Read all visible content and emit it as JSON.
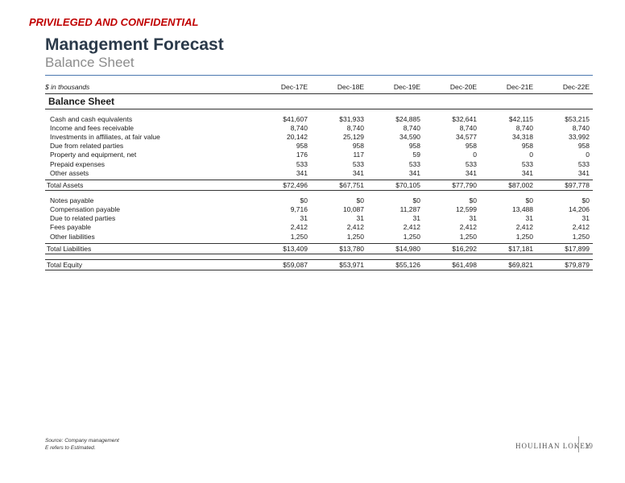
{
  "header": {
    "confidential": "PRIVILEGED AND CONFIDENTIAL",
    "title": "Management Forecast",
    "subtitle": "Balance Sheet"
  },
  "table": {
    "units_label": "$ in thousands",
    "columns": [
      "Dec-17E",
      "Dec-18E",
      "Dec-19E",
      "Dec-20E",
      "Dec-21E",
      "Dec-22E"
    ],
    "section_title": "Balance Sheet",
    "assets": [
      {
        "label": "Cash and cash equivalents",
        "values": [
          "$41,607",
          "$31,933",
          "$24,885",
          "$32,641",
          "$42,115",
          "$53,215"
        ]
      },
      {
        "label": "Income and fees receivable",
        "values": [
          "8,740",
          "8,740",
          "8,740",
          "8,740",
          "8,740",
          "8,740"
        ]
      },
      {
        "label": "Investments in affiliates, at fair value",
        "values": [
          "20,142",
          "25,129",
          "34,590",
          "34,577",
          "34,318",
          "33,992"
        ]
      },
      {
        "label": "Due from related parties",
        "values": [
          "958",
          "958",
          "958",
          "958",
          "958",
          "958"
        ]
      },
      {
        "label": "Property and equipment, net",
        "values": [
          "176",
          "117",
          "59",
          "0",
          "0",
          "0"
        ]
      },
      {
        "label": "Prepaid expenses",
        "values": [
          "533",
          "533",
          "533",
          "533",
          "533",
          "533"
        ]
      },
      {
        "label": "Other assets",
        "values": [
          "341",
          "341",
          "341",
          "341",
          "341",
          "341"
        ]
      }
    ],
    "total_assets": {
      "label": "Total Assets",
      "values": [
        "$72,496",
        "$67,751",
        "$70,105",
        "$77,790",
        "$87,002",
        "$97,778"
      ]
    },
    "liabilities": [
      {
        "label": "Notes payable",
        "values": [
          "$0",
          "$0",
          "$0",
          "$0",
          "$0",
          "$0"
        ]
      },
      {
        "label": "Compensation payable",
        "values": [
          "9,716",
          "10,087",
          "11,287",
          "12,599",
          "13,488",
          "14,206"
        ]
      },
      {
        "label": "Due to related parties",
        "values": [
          "31",
          "31",
          "31",
          "31",
          "31",
          "31"
        ]
      },
      {
        "label": "Fees payable",
        "values": [
          "2,412",
          "2,412",
          "2,412",
          "2,412",
          "2,412",
          "2,412"
        ]
      },
      {
        "label": "Other liabilities",
        "values": [
          "1,250",
          "1,250",
          "1,250",
          "1,250",
          "1,250",
          "1,250"
        ]
      }
    ],
    "total_liabilities": {
      "label": "Total Liabilities",
      "values": [
        "$13,409",
        "$13,780",
        "$14,980",
        "$16,292",
        "$17,181",
        "$17,899"
      ]
    },
    "total_equity": {
      "label": "Total Equity",
      "values": [
        "$59,087",
        "$53,971",
        "$55,126",
        "$61,498",
        "$69,821",
        "$79,879"
      ]
    }
  },
  "footer": {
    "source": "Source: Company management",
    "note": "E refers to Estimated.",
    "logo_text": "HOULIHAN LOKEY",
    "page_number": "19"
  },
  "colors": {
    "confidential": "#c00000",
    "title": "#2b3a4a",
    "subtitle": "#8c8c8c",
    "rule": "#4a78b0"
  }
}
